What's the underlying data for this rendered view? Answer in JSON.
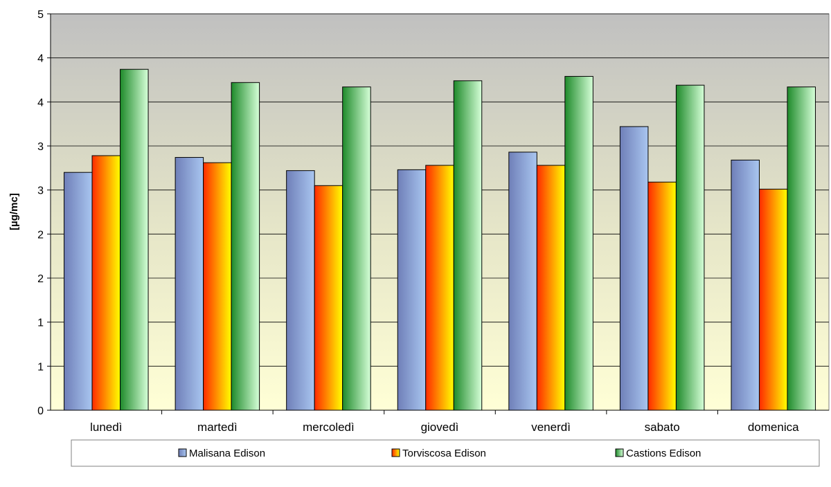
{
  "chart_data": {
    "type": "bar",
    "ylabel": "[µg/mc]",
    "y_tick_labels": [
      "0",
      "1",
      "1",
      "2",
      "2",
      "3",
      "3",
      "4",
      "4",
      "5"
    ],
    "ylim": [
      0,
      4.5
    ],
    "categories": [
      "lunedì",
      "martedì",
      "mercoledì",
      "giovedì",
      "venerdì",
      "sabato",
      "domenica"
    ],
    "series": [
      {
        "name": "Malisana Edison",
        "values": [
          2.7,
          2.87,
          2.72,
          2.73,
          2.93,
          3.22,
          2.84
        ]
      },
      {
        "name": "Torviscosa Edison",
        "values": [
          2.89,
          2.81,
          2.55,
          2.78,
          2.78,
          2.59,
          2.51
        ]
      },
      {
        "name": "Castions Edison",
        "values": [
          3.87,
          3.72,
          3.67,
          3.74,
          3.79,
          3.69,
          3.67
        ]
      }
    ],
    "colors": {
      "Malisana Edison": [
        "#6f7fb8",
        "#a9c6f0"
      ],
      "Torviscosa Edison": [
        "#ff2a00",
        "#ffff00"
      ],
      "Castions Edison": [
        "#1e8a2a",
        "#d6ffd8"
      ]
    },
    "grid": true,
    "legend_position": "bottom"
  }
}
